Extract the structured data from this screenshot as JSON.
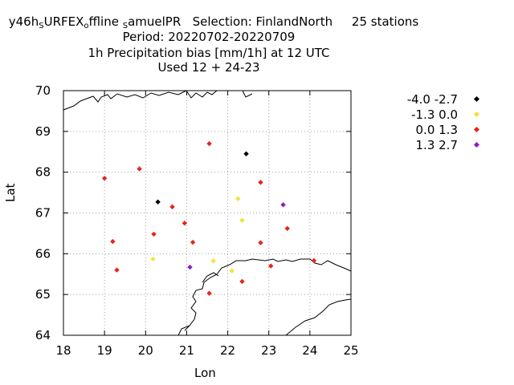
{
  "title": {
    "line1_parts": [
      "y46h",
      "S",
      "URFEX",
      "o",
      "ffline ",
      "S",
      "amuelPR"
    ],
    "selection": "Selection: FinlandNorth",
    "stations": "25 stations",
    "line2": "Period: 20220702-20220709",
    "line3": "1h Precipitation bias [mm/1h] at  12 UTC",
    "line4": "Used  12 + 24-23"
  },
  "chart_data": {
    "type": "scatter",
    "xlabel": "Lon",
    "ylabel": "Lat",
    "xlim": [
      18,
      25
    ],
    "ylim": [
      64,
      70
    ],
    "xticks": [
      18,
      19,
      20,
      21,
      22,
      23,
      24,
      25
    ],
    "yticks": [
      64,
      65,
      66,
      67,
      68,
      69,
      70
    ],
    "grid": true,
    "legend_position": "top-right",
    "series": [
      {
        "name": "-4.0 -2.7",
        "color": "#000000",
        "points": [
          [
            20.3,
            67.27
          ],
          [
            22.45,
            68.45
          ]
        ]
      },
      {
        "name": "-1.3 0.0",
        "color": "#f5e23a",
        "points": [
          [
            20.18,
            65.87
          ],
          [
            21.65,
            65.82
          ],
          [
            22.25,
            67.35
          ],
          [
            22.35,
            66.82
          ],
          [
            22.1,
            65.58
          ]
        ]
      },
      {
        "name": "0.0 1.3",
        "color": "#e0281a",
        "points": [
          [
            19.0,
            67.85
          ],
          [
            19.85,
            68.08
          ],
          [
            19.2,
            66.3
          ],
          [
            19.3,
            65.6
          ],
          [
            20.2,
            66.48
          ],
          [
            20.65,
            67.15
          ],
          [
            20.95,
            66.75
          ],
          [
            21.15,
            66.28
          ],
          [
            21.55,
            68.7
          ],
          [
            21.55,
            65.03
          ],
          [
            22.35,
            65.32
          ],
          [
            22.8,
            67.75
          ],
          [
            22.8,
            66.27
          ],
          [
            23.05,
            65.7
          ],
          [
            23.45,
            66.62
          ],
          [
            24.1,
            65.83
          ]
        ]
      },
      {
        "name": "1.3 2.7",
        "color": "#8a1bc9",
        "points": [
          [
            21.08,
            65.67
          ],
          [
            23.35,
            67.2
          ]
        ]
      }
    ]
  }
}
